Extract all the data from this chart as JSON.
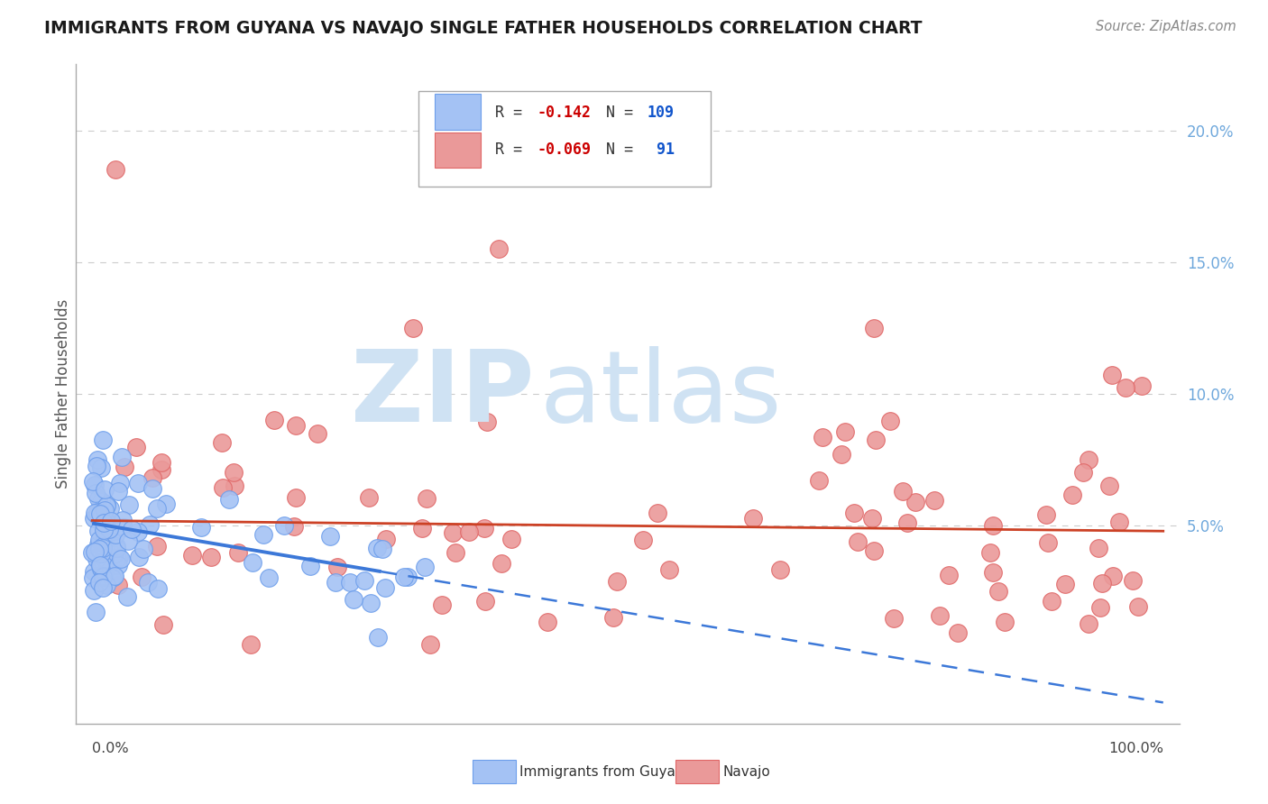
{
  "title": "IMMIGRANTS FROM GUYANA VS NAVAJO SINGLE FATHER HOUSEHOLDS CORRELATION CHART",
  "source": "Source: ZipAtlas.com",
  "ylabel": "Single Father Households",
  "blue_color": "#a4c2f4",
  "blue_edge_color": "#6d9eeb",
  "pink_color": "#ea9999",
  "pink_edge_color": "#e06666",
  "blue_line_color": "#3c78d8",
  "pink_line_color": "#cc4125",
  "watermark_zip_color": "#cfe2f3",
  "watermark_atlas_color": "#cfe2f3",
  "ytick_color": "#6fa8dc",
  "legend_r_color": "#cc0000",
  "legend_n_color": "#1155cc"
}
